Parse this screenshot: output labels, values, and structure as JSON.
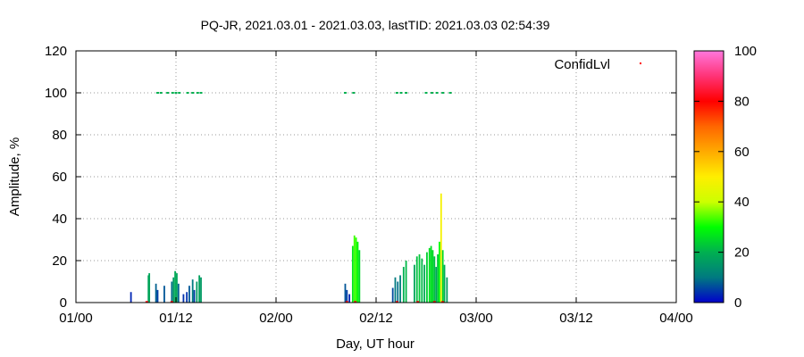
{
  "chart_data": {
    "type": "bar",
    "title": "PQ-JR, 2021.03.01 - 2021.03.03, lastTID: 2021.03.03 02:54:39",
    "xlabel": "Day, UT hour",
    "ylabel": "Amplitude, %",
    "xlim": [
      0,
      72
    ],
    "ylim": [
      0,
      120
    ],
    "x_ticks": [
      {
        "value": 0,
        "label": "01/00"
      },
      {
        "value": 12,
        "label": "01/12"
      },
      {
        "value": 24,
        "label": "02/00"
      },
      {
        "value": 36,
        "label": "02/12"
      },
      {
        "value": 48,
        "label": "03/00"
      },
      {
        "value": 60,
        "label": "03/12"
      },
      {
        "value": 72,
        "label": "04/00"
      }
    ],
    "y_ticks": [
      0,
      20,
      40,
      60,
      80,
      100,
      120
    ],
    "grid": true,
    "legend": {
      "label": "ConfidLvl",
      "placement": "top-right"
    },
    "colorbar": {
      "min": 0,
      "max": 100,
      "ticks": [
        0,
        20,
        40,
        60,
        80,
        100
      ]
    },
    "series": [
      {
        "values": [
          [
            6.6,
            5,
            3
          ],
          [
            8.7,
            13,
            18
          ],
          [
            8.8,
            14,
            18
          ],
          [
            9.6,
            9,
            8
          ],
          [
            9.8,
            6,
            5
          ],
          [
            10.6,
            8,
            7
          ],
          [
            11.5,
            10,
            9
          ],
          [
            11.7,
            12,
            16
          ],
          [
            11.9,
            15,
            19
          ],
          [
            12.1,
            14,
            18
          ],
          [
            12.3,
            9,
            8
          ],
          [
            12.9,
            4,
            4
          ],
          [
            13.3,
            5,
            4
          ],
          [
            13.6,
            8,
            7
          ],
          [
            14.0,
            11,
            10
          ],
          [
            14.2,
            6,
            5
          ],
          [
            14.5,
            10,
            16
          ],
          [
            14.8,
            13,
            17
          ],
          [
            15.0,
            12,
            16
          ],
          [
            32.3,
            9,
            7
          ],
          [
            32.5,
            6,
            5
          ],
          [
            32.8,
            4,
            3
          ],
          [
            33.2,
            27,
            27
          ],
          [
            33.4,
            32,
            33
          ],
          [
            33.6,
            31,
            32
          ],
          [
            33.8,
            29,
            29
          ],
          [
            34.0,
            25,
            25
          ],
          [
            38.0,
            7,
            6
          ],
          [
            38.3,
            12,
            10
          ],
          [
            38.6,
            10,
            9
          ],
          [
            38.9,
            13,
            11
          ],
          [
            39.3,
            17,
            20
          ],
          [
            39.6,
            20,
            21
          ],
          [
            40.6,
            18,
            18
          ],
          [
            40.9,
            22,
            22
          ],
          [
            41.2,
            23,
            23
          ],
          [
            41.5,
            21,
            21
          ],
          [
            41.8,
            18,
            19
          ],
          [
            42.1,
            24,
            24
          ],
          [
            42.4,
            26,
            26
          ],
          [
            42.6,
            27,
            26
          ],
          [
            42.8,
            25,
            25
          ],
          [
            43.0,
            22,
            22
          ],
          [
            43.2,
            17,
            18
          ],
          [
            43.4,
            23,
            23
          ],
          [
            43.6,
            29,
            30
          ],
          [
            43.8,
            52,
            48
          ],
          [
            44.0,
            25,
            25
          ],
          [
            44.2,
            18,
            19
          ],
          [
            44.5,
            12,
            17
          ]
        ]
      },
      {
        "values": [
          [
            9.8,
            100,
            20
          ],
          [
            10.2,
            100,
            20
          ],
          [
            11.0,
            100,
            20
          ],
          [
            11.6,
            100,
            20
          ],
          [
            12.0,
            100,
            20
          ],
          [
            12.4,
            100,
            20
          ],
          [
            13.4,
            100,
            20
          ],
          [
            14.0,
            100,
            20
          ],
          [
            14.6,
            100,
            20
          ],
          [
            15.0,
            100,
            20
          ],
          [
            32.3,
            100,
            20
          ],
          [
            33.3,
            100,
            20
          ],
          [
            38.5,
            100,
            20
          ],
          [
            39.0,
            100,
            20
          ],
          [
            39.6,
            100,
            20
          ],
          [
            42.0,
            100,
            20
          ],
          [
            42.7,
            100,
            20
          ],
          [
            43.3,
            100,
            20
          ],
          [
            44.0,
            100,
            20
          ],
          [
            44.9,
            100,
            20
          ]
        ]
      },
      {
        "values": [
          [
            8.5,
            0.3,
            80
          ],
          [
            11.5,
            0.3,
            80
          ],
          [
            32.5,
            0.3,
            80
          ],
          [
            33.5,
            0.3,
            80
          ],
          [
            38.5,
            0.3,
            80
          ],
          [
            41.0,
            0.3,
            80
          ],
          [
            43.0,
            0.3,
            80
          ],
          [
            44.0,
            0.3,
            80
          ]
        ]
      }
    ]
  }
}
